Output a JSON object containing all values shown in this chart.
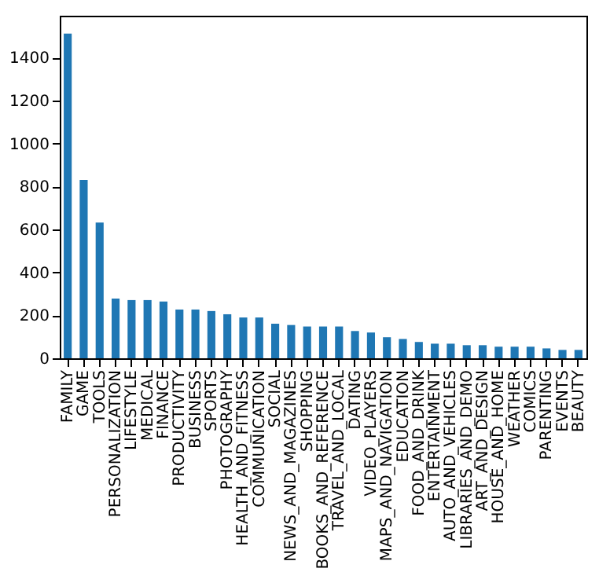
{
  "chart_data": {
    "type": "bar",
    "categories": [
      "FAMILY",
      "GAME",
      "TOOLS",
      "PERSONALIZATION",
      "LIFESTYLE",
      "MEDICAL",
      "FINANCE",
      "PRODUCTIVITY",
      "BUSINESS",
      "SPORTS",
      "PHOTOGRAPHY",
      "HEALTH_AND_FITNESS",
      "COMMUNICATION",
      "SOCIAL",
      "NEWS_AND_MAGAZINES",
      "SHOPPING",
      "BOOKS_AND_REFERENCE",
      "TRAVEL_AND_LOCAL",
      "DATING",
      "VIDEO_PLAYERS",
      "MAPS_AND_NAVIGATION",
      "EDUCATION",
      "FOOD_AND_DRINK",
      "ENTERTAINMENT",
      "AUTO_AND_VEHICLES",
      "LIBRARIES_AND_DEMO",
      "ART_AND_DESIGN",
      "HOUSE_AND_HOME",
      "WEATHER",
      "COMICS",
      "PARENTING",
      "EVENTS",
      "BEAUTY"
    ],
    "values": [
      1512,
      830,
      632,
      278,
      271,
      271,
      264,
      227,
      227,
      220,
      205,
      190,
      190,
      161,
      155,
      148,
      148,
      148,
      127,
      120,
      98,
      90,
      76,
      68,
      68,
      61,
      61,
      54,
      54,
      54,
      46,
      39,
      39
    ],
    "color": "#1f77b4",
    "ylim": [
      0,
      1595
    ],
    "yticks": [
      0,
      200,
      400,
      600,
      800,
      1000,
      1200,
      1400
    ],
    "grid": false
  }
}
